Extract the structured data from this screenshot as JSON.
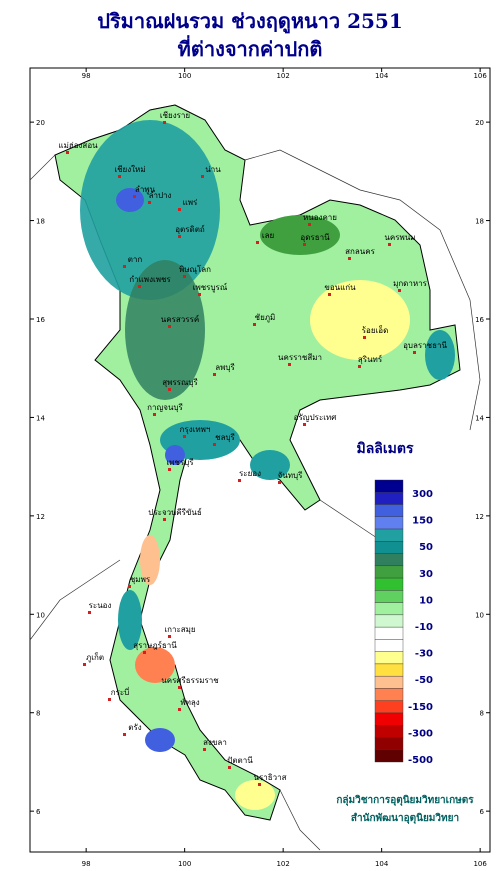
{
  "title": [
    "ปริมาณฝนรวม ช่วงฤดูหนาว 2551",
    "ที่ต่างจากค่าปกติ"
  ],
  "lon_ticks": [
    98,
    100,
    102,
    104,
    106
  ],
  "lat_ticks": [
    20,
    18,
    16,
    14,
    12,
    10,
    8,
    6
  ],
  "legend": {
    "title": "มิลลิเมตร",
    "colors": [
      "#000090",
      "#2020c0",
      "#4060e0",
      "#6080f0",
      "#20a0a0",
      "#109090",
      "#308060",
      "#40a040",
      "#30c030",
      "#60d060",
      "#a0f0a0",
      "#d0f8d0",
      "#ffffff",
      "#ffffff",
      "#ffff90",
      "#ffe040",
      "#ffc090",
      "#ff8050",
      "#ff4020",
      "#f00000",
      "#c00000",
      "#900000",
      "#600000"
    ],
    "labels": [
      300,
      150,
      50,
      30,
      10,
      -10,
      -30,
      -50,
      -150,
      -300,
      -500
    ]
  },
  "provinces": [
    "เชียงราย",
    "แม่ฮ่องสอน",
    "เชียงใหม่",
    "น่าน",
    "ลำพูน",
    "ลำปาง",
    "แพร่",
    "อุตรดิตถ์",
    "ตาก",
    "พิษณุโลก",
    "กำแพงเพชร",
    "เพชรบูรณ์",
    "นครสวรรค์",
    "หนองคาย",
    "อุดรธานี",
    "สกลนคร",
    "นครพนม",
    "เลย",
    "ขอนแก่น",
    "มุกดาหาร",
    "ชัยภูมิ",
    "ร้อยเอ็ด",
    "อุบลราชธานี",
    "นครราชสีมา",
    "สุรินทร์",
    "ลพบุรี",
    "สุพรรณบุรี",
    "กาญจนบุรี",
    "กรุงเทพฯ",
    "อรัญประเทศ",
    "ชลบุรี",
    "ระยอง",
    "จันทบุรี",
    "เพชรบุรี",
    "ประจวบคีรีขันธ์",
    "ชุมพร",
    "ระนอง",
    "เกาะสมุย",
    "สุราษฎร์ธานี",
    "นครศรีธรรมราช",
    "ภูเก็ต",
    "กระบี่",
    "ตรัง",
    "พัทลุง",
    "สงขลา",
    "ปัตตานี",
    "นราธิวาส"
  ],
  "credits": [
    "กลุ่มวิชาการอุตุนิยมวิทยาเกษตร",
    "สำนักพัฒนาอุตุนิยมวิทยา"
  ]
}
